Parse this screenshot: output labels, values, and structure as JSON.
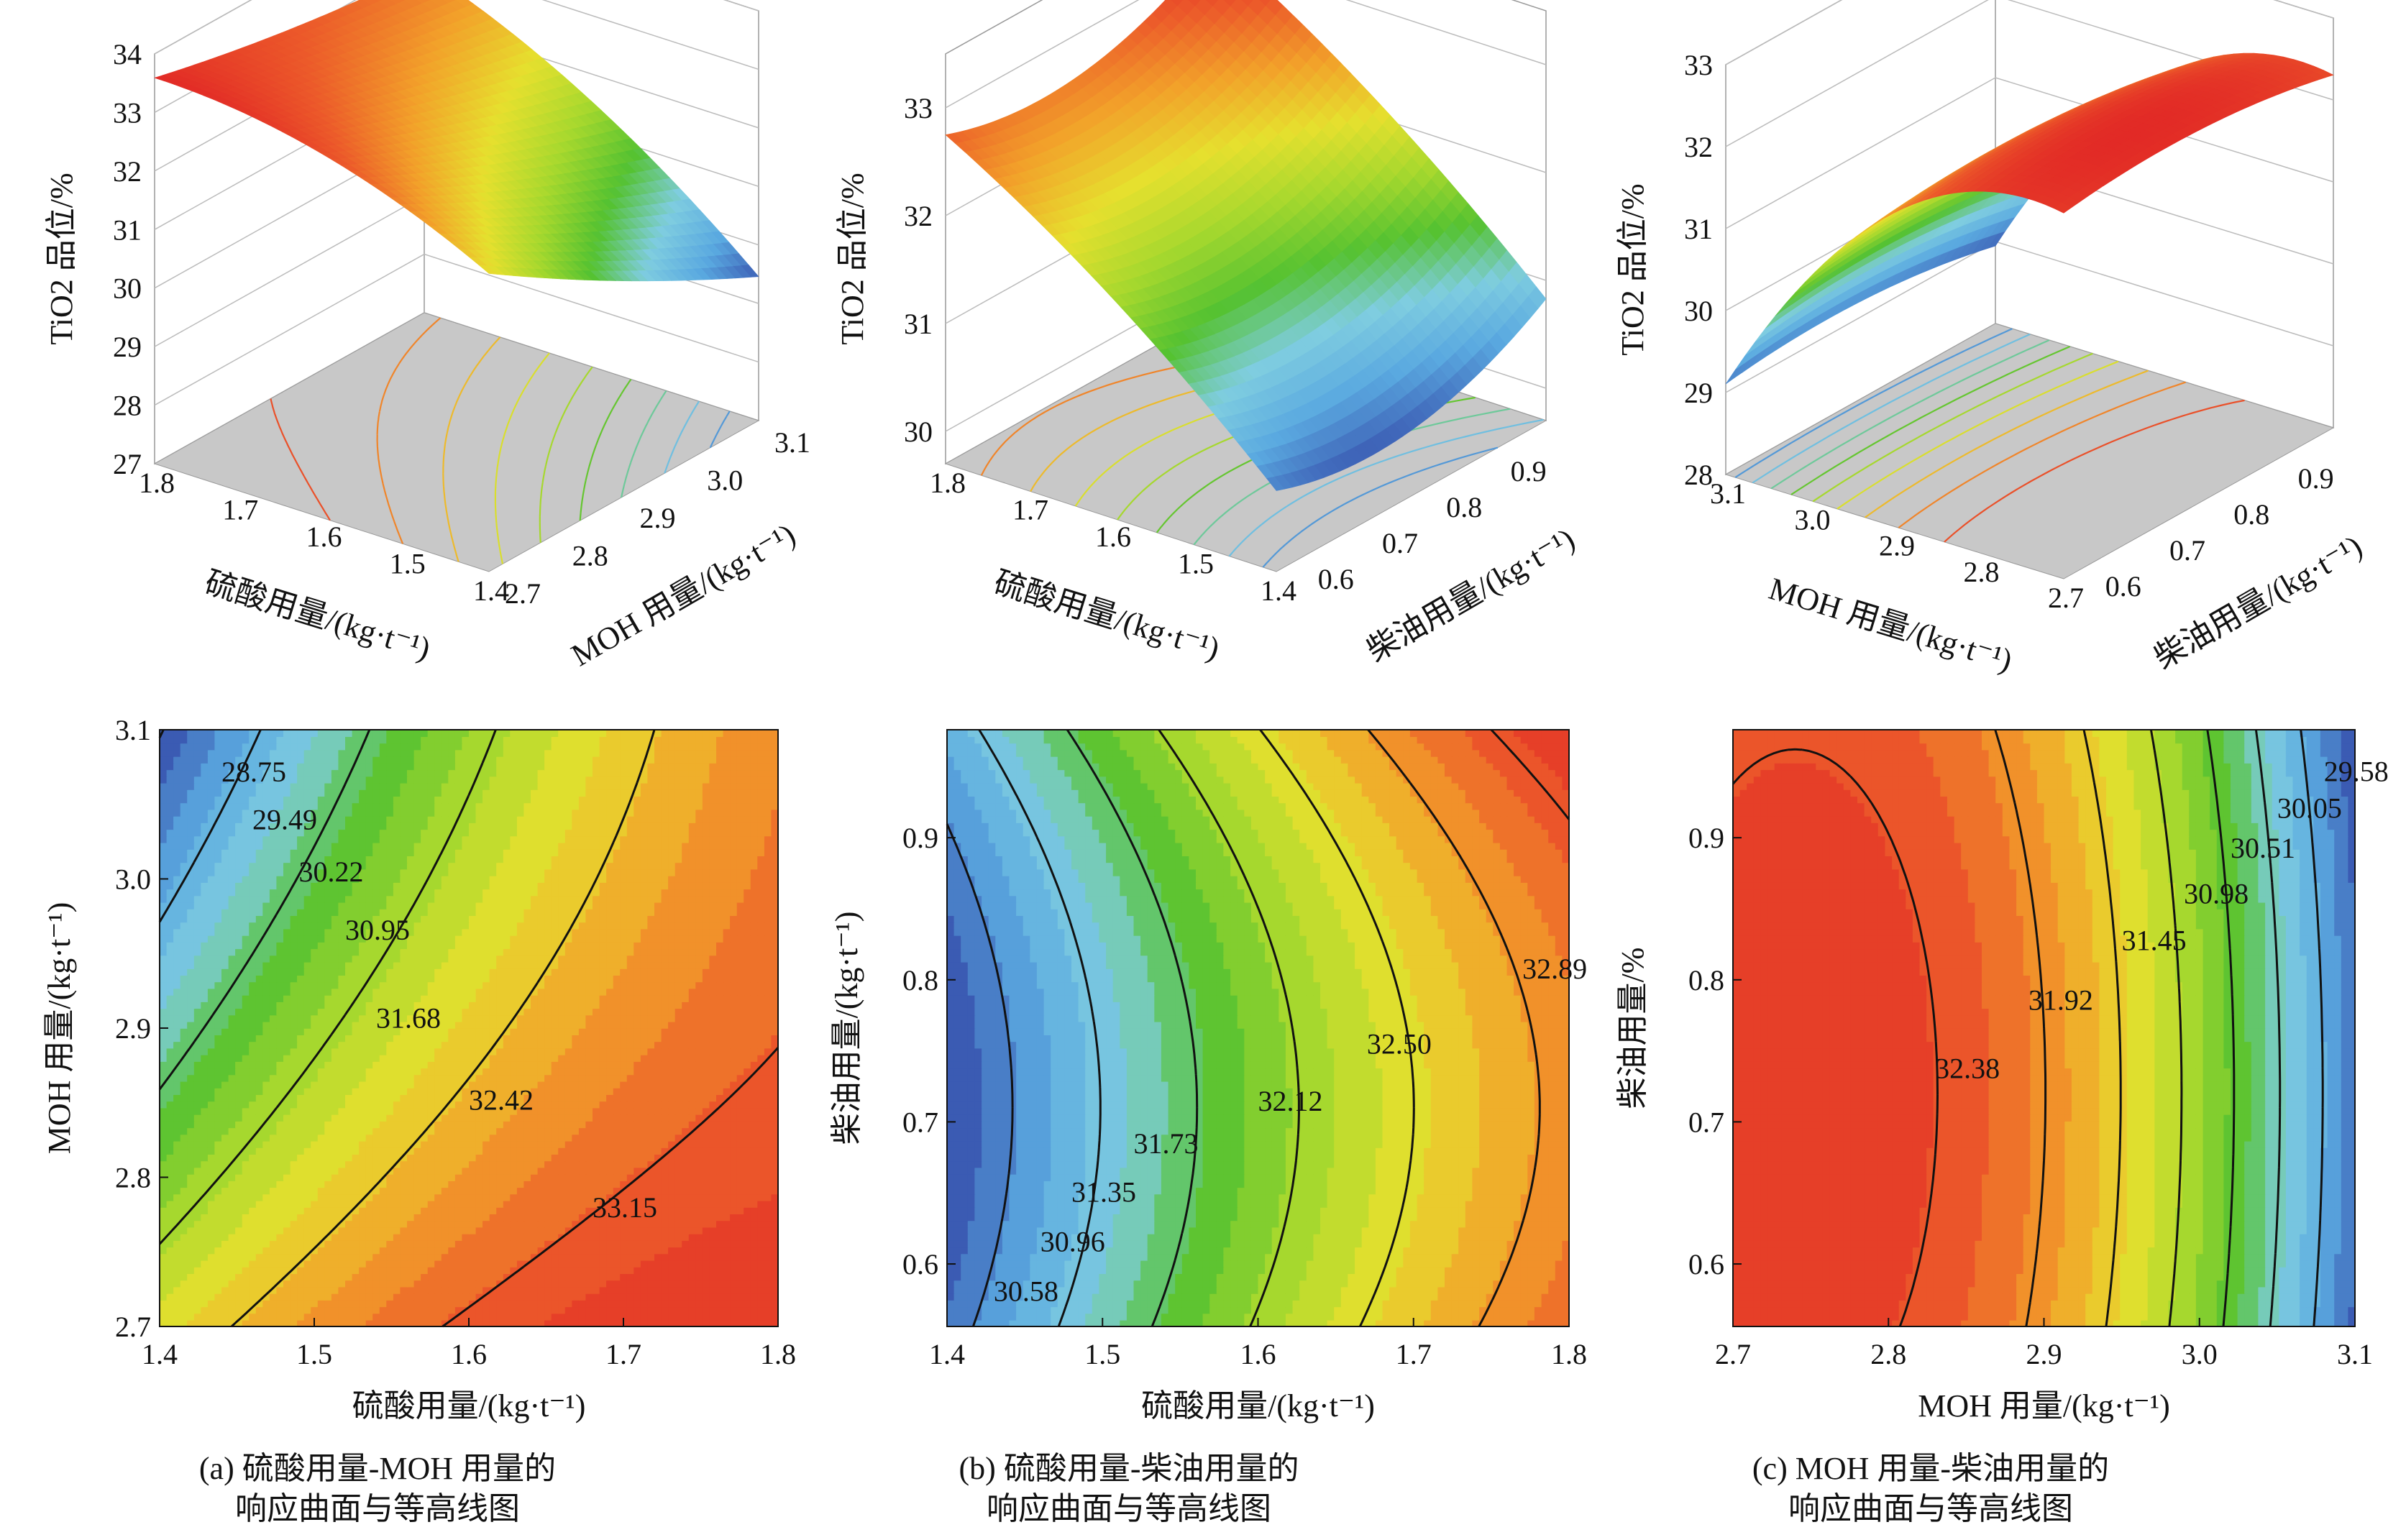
{
  "colors": {
    "colormap": [
      "#3b5bb3",
      "#5aa9e0",
      "#7fcde0",
      "#55c231",
      "#a6d82e",
      "#e6e02e",
      "#f2a12a",
      "#ec5a2a",
      "#e22a26"
    ],
    "contour_line": "#111111",
    "surface_floor": "#c8c8c8"
  },
  "chart_data": [
    {
      "type": "surface",
      "panel": "a",
      "zlabel": "TiO2 品位/%",
      "xlabel": "硫酸用量/(kg·t⁻¹)",
      "ylabel": "MOH 用量/(kg·t⁻¹)",
      "x_ticks": [
        "1.4",
        "1.5",
        "1.6",
        "1.7",
        "1.8"
      ],
      "y_ticks": [
        "2.7",
        "2.8",
        "2.9",
        "3.0",
        "3.1"
      ],
      "z_ticks": [
        "27",
        "28",
        "29",
        "30",
        "31",
        "32",
        "33",
        "34"
      ],
      "xlim": [
        1.4,
        1.8
      ],
      "ylim": [
        2.7,
        3.1
      ],
      "zlim": [
        27,
        34
      ]
    },
    {
      "type": "surface",
      "panel": "b",
      "zlabel": "TiO2 品位/%",
      "xlabel": "硫酸用量/(kg·t⁻¹)",
      "ylabel": "柴油用量/(kg·t⁻¹)",
      "x_ticks": [
        "1.4",
        "1.5",
        "1.6",
        "1.7",
        "1.8"
      ],
      "y_ticks": [
        "0.6",
        "0.7",
        "0.8",
        "0.9"
      ],
      "z_ticks": [
        "30",
        "31",
        "32",
        "33"
      ],
      "xlim": [
        1.4,
        1.8
      ],
      "ylim": [
        0.56,
        0.98
      ],
      "zlim": [
        29.7,
        33.5
      ]
    },
    {
      "type": "surface",
      "panel": "c",
      "zlabel": "TiO2 品位/%",
      "xlabel": "MOH 用量/(kg·t⁻¹)",
      "ylabel": "柴油用量/(kg·t⁻¹)",
      "x_ticks": [
        "2.7",
        "2.8",
        "2.9",
        "3.0",
        "3.1"
      ],
      "y_ticks": [
        "0.6",
        "0.7",
        "0.8",
        "0.9"
      ],
      "z_ticks": [
        "28",
        "29",
        "30",
        "31",
        "32",
        "33"
      ],
      "xlim": [
        2.7,
        3.1
      ],
      "ylim": [
        0.56,
        0.98
      ],
      "zlim": [
        28,
        33
      ]
    },
    {
      "type": "heatmap",
      "panel": "a",
      "xlabel": "硫酸用量/(kg·t⁻¹)",
      "ylabel": "MOH 用量/(kg·t⁻¹)",
      "x_ticks": [
        "1.4",
        "1.5",
        "1.6",
        "1.7",
        "1.8"
      ],
      "y_ticks": [
        "2.7",
        "2.8",
        "2.9",
        "3.0",
        "3.1"
      ],
      "xlim": [
        1.4,
        1.8
      ],
      "ylim": [
        2.7,
        3.1
      ],
      "contour_labels": [
        {
          "text": "28.75",
          "x": 1.44,
          "y": 3.072
        },
        {
          "text": "29.49",
          "x": 1.46,
          "y": 3.04
        },
        {
          "text": "30.22",
          "x": 1.49,
          "y": 3.005
        },
        {
          "text": "30.95",
          "x": 1.52,
          "y": 2.966
        },
        {
          "text": "31.68",
          "x": 1.54,
          "y": 2.907
        },
        {
          "text": "32.42",
          "x": 1.6,
          "y": 2.852
        },
        {
          "text": "33.15",
          "x": 1.68,
          "y": 2.78
        }
      ]
    },
    {
      "type": "heatmap",
      "panel": "b",
      "xlabel": "硫酸用量/(kg·t⁻¹)",
      "ylabel": "柴油用量/(kg·t⁻¹)",
      "x_ticks": [
        "1.4",
        "1.5",
        "1.6",
        "1.7",
        "1.8"
      ],
      "y_ticks": [
        "0.6",
        "0.7",
        "0.8",
        "0.9"
      ],
      "xlim": [
        1.4,
        1.8
      ],
      "ylim": [
        0.556,
        0.976
      ],
      "contour_labels": [
        {
          "text": "30.58",
          "x": 1.43,
          "y": 0.581
        },
        {
          "text": "30.96",
          "x": 1.46,
          "y": 0.616
        },
        {
          "text": "31.35",
          "x": 1.48,
          "y": 0.651
        },
        {
          "text": "31.73",
          "x": 1.52,
          "y": 0.685
        },
        {
          "text": "32.12",
          "x": 1.6,
          "y": 0.715
        },
        {
          "text": "32.50",
          "x": 1.67,
          "y": 0.755
        },
        {
          "text": "32.89",
          "x": 1.77,
          "y": 0.808
        }
      ]
    },
    {
      "type": "heatmap",
      "panel": "c",
      "xlabel": "MOH 用量/(kg·t⁻¹)",
      "ylabel": "柴油用量/%",
      "x_ticks": [
        "2.7",
        "2.8",
        "2.9",
        "3.0",
        "3.1"
      ],
      "y_ticks": [
        "0.6",
        "0.7",
        "0.8",
        "0.9"
      ],
      "xlim": [
        2.7,
        3.1
      ],
      "ylim": [
        0.556,
        0.976
      ],
      "contour_labels": [
        {
          "text": "29.58",
          "x": 3.08,
          "y": 0.947
        },
        {
          "text": "30.05",
          "x": 3.05,
          "y": 0.921
        },
        {
          "text": "30.51",
          "x": 3.02,
          "y": 0.893
        },
        {
          "text": "30.98",
          "x": 2.99,
          "y": 0.861
        },
        {
          "text": "31.45",
          "x": 2.95,
          "y": 0.828
        },
        {
          "text": "31.92",
          "x": 2.89,
          "y": 0.786
        },
        {
          "text": "32.38",
          "x": 2.83,
          "y": 0.738
        }
      ]
    }
  ],
  "captions": [
    {
      "line1": "(a) 硫酸用量-MOH 用量的",
      "line2": "响应曲面与等高线图"
    },
    {
      "line1": "(b) 硫酸用量-柴油用量的",
      "line2": "响应曲面与等高线图"
    },
    {
      "line1": "(c) MOH 用量-柴油用量的",
      "line2": "响应曲面与等高线图"
    }
  ]
}
